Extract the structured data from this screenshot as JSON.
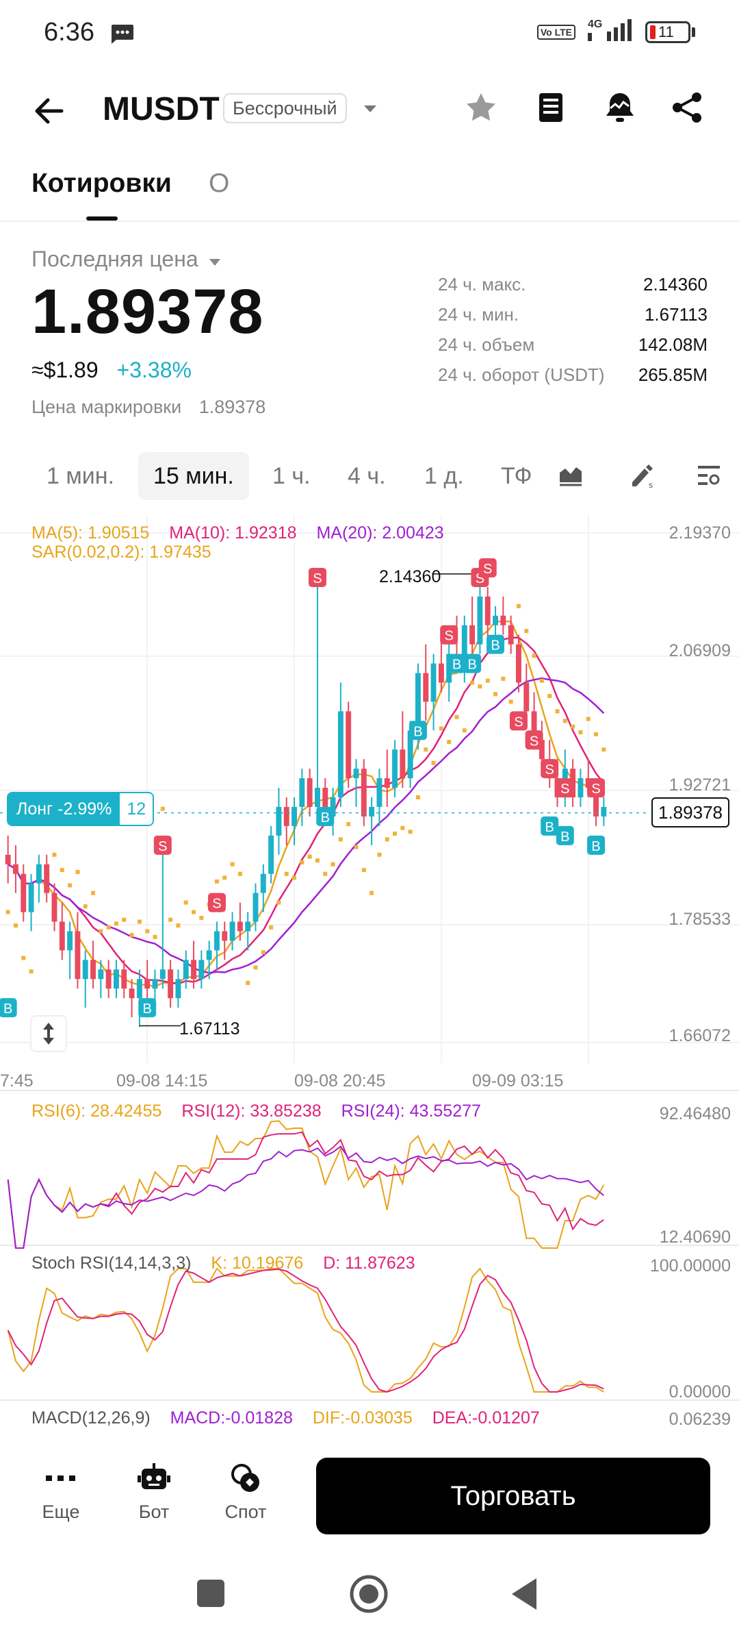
{
  "status_bar": {
    "time": "6:36",
    "network": "4G",
    "volte": "Vo LTE",
    "battery": "11"
  },
  "header": {
    "pair": "MUSDT",
    "contract_type": "Бессрочный"
  },
  "tabs": [
    {
      "label": "Котировки",
      "active": true
    },
    {
      "label": "О",
      "active": false
    }
  ],
  "price": {
    "label": "Последняя цена",
    "last": "1.89378",
    "usd": "≈$1.89",
    "change": "+3.38%",
    "mark_label": "Цена маркировки",
    "mark_value": "1.89378"
  },
  "stats": [
    {
      "label": "24 ч. макс.",
      "value": "2.14360"
    },
    {
      "label": "24 ч. мин.",
      "value": "1.67113"
    },
    {
      "label": "24 ч. объем",
      "value": "142.08M"
    },
    {
      "label": "24 ч. оборот (USDT)",
      "value": "265.85M"
    }
  ],
  "timeframes": [
    {
      "label": "1 мин.",
      "active": false
    },
    {
      "label": "15 мин.",
      "active": true
    },
    {
      "label": "1 ч.",
      "active": false
    },
    {
      "label": "4 ч.",
      "active": false
    },
    {
      "label": "1 д.",
      "active": false
    },
    {
      "label": "ТФ",
      "active": false
    }
  ],
  "indicators": {
    "ma5": "MA(5): 1.90515",
    "ma10": "MA(10): 1.92318",
    "ma20": "MA(20): 2.00423",
    "sar": "SAR(0.02,0.2): 1.97435",
    "rsi6": "RSI(6): 28.42455",
    "rsi12": "RSI(12): 33.85238",
    "rsi24": "RSI(24): 43.55277",
    "stoch": "Stoch RSI(14,14,3,3)",
    "stoch_k": "K: 10.19676",
    "stoch_d": "D: 11.87623",
    "macd_name": "MACD(12,26,9)",
    "macd": "MACD:-0.01828",
    "dif": "DIF:-0.03035",
    "dea": "DEA:-0.01207"
  },
  "position": {
    "label": "Лонг -2.99%",
    "leverage": "12"
  },
  "chart_data": {
    "type": "candlestick",
    "price_axis": [
      "2.19370",
      "2.06909",
      "1.92721",
      "1.78533",
      "1.66072"
    ],
    "ylim": [
      1.66072,
      2.1937
    ],
    "time_axis": [
      "7:45",
      "09-08 14:15",
      "09-08 20:45",
      "09-09 03:15"
    ],
    "current_price": "1.89378",
    "high_label": "2.14360",
    "low_label": "1.67113",
    "rsi_axis": [
      "92.46480",
      "12.40690"
    ],
    "stoch_axis": [
      "100.00000",
      "0.00000"
    ],
    "macd_axis": [
      "0.06239"
    ],
    "candles": [
      [
        1.85,
        1.87,
        1.82,
        1.84
      ],
      [
        1.84,
        1.86,
        1.81,
        1.83
      ],
      [
        1.83,
        1.84,
        1.78,
        1.79
      ],
      [
        1.79,
        1.83,
        1.77,
        1.82
      ],
      [
        1.82,
        1.85,
        1.8,
        1.84
      ],
      [
        1.84,
        1.85,
        1.8,
        1.81
      ],
      [
        1.81,
        1.82,
        1.77,
        1.78
      ],
      [
        1.78,
        1.8,
        1.74,
        1.75
      ],
      [
        1.75,
        1.78,
        1.72,
        1.77
      ],
      [
        1.77,
        1.79,
        1.71,
        1.72
      ],
      [
        1.72,
        1.75,
        1.69,
        1.74
      ],
      [
        1.74,
        1.76,
        1.71,
        1.72
      ],
      [
        1.72,
        1.74,
        1.7,
        1.73
      ],
      [
        1.73,
        1.74,
        1.7,
        1.71
      ],
      [
        1.71,
        1.74,
        1.7,
        1.73
      ],
      [
        1.73,
        1.74,
        1.7,
        1.71
      ],
      [
        1.71,
        1.72,
        1.68,
        1.7
      ],
      [
        1.7,
        1.73,
        1.67,
        1.72
      ],
      [
        1.72,
        1.74,
        1.7,
        1.71
      ],
      [
        1.71,
        1.73,
        1.69,
        1.72
      ],
      [
        1.72,
        1.86,
        1.71,
        1.73
      ],
      [
        1.73,
        1.74,
        1.69,
        1.7
      ],
      [
        1.7,
        1.73,
        1.69,
        1.72
      ],
      [
        1.72,
        1.75,
        1.71,
        1.74
      ],
      [
        1.74,
        1.76,
        1.71,
        1.72
      ],
      [
        1.72,
        1.75,
        1.71,
        1.74
      ],
      [
        1.74,
        1.76,
        1.72,
        1.75
      ],
      [
        1.75,
        1.78,
        1.73,
        1.77
      ],
      [
        1.77,
        1.78,
        1.74,
        1.76
      ],
      [
        1.76,
        1.79,
        1.75,
        1.78
      ],
      [
        1.78,
        1.8,
        1.76,
        1.77
      ],
      [
        1.77,
        1.79,
        1.75,
        1.78
      ],
      [
        1.78,
        1.82,
        1.77,
        1.81
      ],
      [
        1.81,
        1.84,
        1.79,
        1.83
      ],
      [
        1.83,
        1.88,
        1.82,
        1.87
      ],
      [
        1.87,
        1.92,
        1.85,
        1.9
      ],
      [
        1.9,
        1.91,
        1.86,
        1.88
      ],
      [
        1.88,
        1.91,
        1.86,
        1.9
      ],
      [
        1.9,
        1.94,
        1.88,
        1.93
      ],
      [
        1.93,
        1.94,
        1.89,
        1.9
      ],
      [
        1.9,
        2.14,
        1.89,
        1.92
      ],
      [
        1.92,
        1.93,
        1.88,
        1.89
      ],
      [
        1.89,
        1.92,
        1.87,
        1.91
      ],
      [
        1.91,
        2.03,
        1.9,
        2.0
      ],
      [
        2.0,
        2.01,
        1.92,
        1.93
      ],
      [
        1.93,
        1.95,
        1.9,
        1.94
      ],
      [
        1.94,
        1.95,
        1.88,
        1.89
      ],
      [
        1.89,
        1.91,
        1.86,
        1.9
      ],
      [
        1.9,
        1.94,
        1.88,
        1.93
      ],
      [
        1.93,
        1.96,
        1.9,
        1.92
      ],
      [
        1.92,
        1.97,
        1.91,
        1.96
      ],
      [
        1.96,
        2.0,
        1.92,
        1.93
      ],
      [
        1.93,
        1.99,
        1.92,
        1.98
      ],
      [
        1.98,
        2.05,
        1.96,
        2.04
      ],
      [
        2.04,
        2.07,
        1.99,
        2.01
      ],
      [
        2.01,
        2.06,
        1.98,
        2.05
      ],
      [
        2.05,
        2.08,
        2.02,
        2.03
      ],
      [
        2.03,
        2.07,
        2.01,
        2.06
      ],
      [
        2.06,
        2.1,
        2.04,
        2.05
      ],
      [
        2.05,
        2.1,
        2.03,
        2.09
      ],
      [
        2.09,
        2.12,
        2.06,
        2.07
      ],
      [
        2.07,
        2.14,
        2.06,
        2.12
      ],
      [
        2.12,
        2.13,
        2.07,
        2.09
      ],
      [
        2.09,
        2.11,
        2.06,
        2.1
      ],
      [
        2.1,
        2.12,
        2.08,
        2.09
      ],
      [
        2.09,
        2.1,
        2.06,
        2.07
      ],
      [
        2.07,
        2.08,
        2.02,
        2.03
      ],
      [
        2.03,
        2.05,
        1.99,
        2.0
      ],
      [
        2.0,
        2.02,
        1.96,
        1.97
      ],
      [
        1.97,
        1.99,
        1.94,
        1.95
      ],
      [
        1.95,
        1.97,
        1.92,
        1.93
      ],
      [
        1.93,
        1.95,
        1.9,
        1.91
      ],
      [
        1.91,
        1.96,
        1.9,
        1.94
      ],
      [
        1.94,
        1.95,
        1.9,
        1.91
      ],
      [
        1.91,
        1.94,
        1.9,
        1.93
      ],
      [
        1.93,
        1.95,
        1.91,
        1.92
      ],
      [
        1.92,
        1.93,
        1.88,
        1.89
      ],
      [
        1.89,
        1.91,
        1.88,
        1.9
      ]
    ]
  },
  "bottom_nav": [
    {
      "label": "Еще",
      "icon": "more-icon"
    },
    {
      "label": "Бот",
      "icon": "bot-icon"
    },
    {
      "label": "Спот",
      "icon": "spot-icon"
    }
  ],
  "trade_button": "Торговать"
}
